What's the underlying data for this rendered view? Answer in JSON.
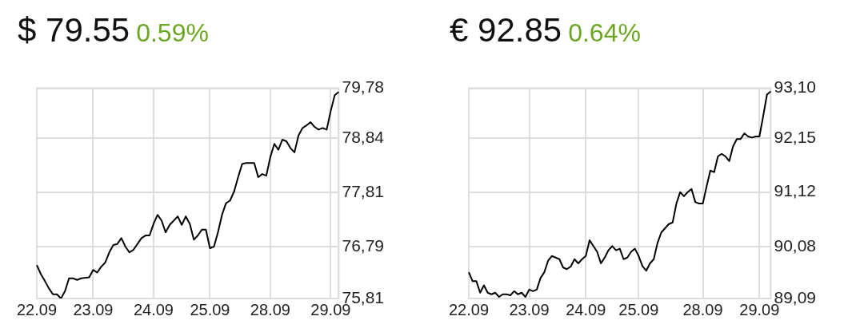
{
  "chart_data": [
    {
      "type": "line",
      "title": "$ 79.55",
      "subtitle": "0.59%",
      "categories": [
        "22.09",
        null,
        null,
        null,
        null,
        null,
        null,
        null,
        null,
        null,
        null,
        null,
        null,
        null,
        "23.09",
        null,
        null,
        null,
        null,
        null,
        null,
        null,
        null,
        null,
        null,
        null,
        null,
        null,
        null,
        "24.09",
        null,
        null,
        null,
        null,
        null,
        null,
        null,
        null,
        null,
        null,
        null,
        null,
        null,
        "25.09",
        null,
        null,
        null,
        null,
        null,
        null,
        null,
        null,
        null,
        null,
        null,
        null,
        null,
        null,
        "28.09",
        null,
        null,
        null,
        null,
        null,
        null,
        null,
        null,
        null,
        null,
        null,
        null,
        null,
        null,
        "29.09",
        null,
        null
      ],
      "ylim": [
        75.81,
        79.78
      ],
      "yticks": [
        {
          "value": 75.81,
          "label": "75,81"
        },
        {
          "value": 76.79,
          "label": "76,79"
        },
        {
          "value": 77.81,
          "label": "77,81"
        },
        {
          "value": 78.84,
          "label": "78,84"
        },
        {
          "value": 79.78,
          "label": "79,78"
        }
      ],
      "grid": true,
      "legend": false,
      "marker": "none",
      "line_style": "solid",
      "series": [
        {
          "color": "#000000",
          "values": [
            76.44,
            76.27,
            76.14,
            76.0,
            75.89,
            75.89,
            75.81,
            75.95,
            76.19,
            76.19,
            76.16,
            76.19,
            76.2,
            76.21,
            76.35,
            76.3,
            76.41,
            76.49,
            76.68,
            76.82,
            76.84,
            76.95,
            76.79,
            76.68,
            76.73,
            76.84,
            76.95,
            77.0,
            77.0,
            77.22,
            77.39,
            77.28,
            77.06,
            77.2,
            77.28,
            77.36,
            77.2,
            77.36,
            77.22,
            76.92,
            77.0,
            77.11,
            77.11,
            76.76,
            76.79,
            77.06,
            77.39,
            77.61,
            77.66,
            77.83,
            78.1,
            78.35,
            78.37,
            78.37,
            78.37,
            78.1,
            78.16,
            78.13,
            78.48,
            78.73,
            78.62,
            78.81,
            78.78,
            78.65,
            78.57,
            78.89,
            79.03,
            79.08,
            79.14,
            79.05,
            79.0,
            79.03,
            79.0,
            79.35,
            79.65,
            79.71
          ]
        }
      ]
    },
    {
      "type": "line",
      "title": "€ 92.85",
      "subtitle": "0.64%",
      "categories": [
        "22.09",
        null,
        null,
        null,
        null,
        null,
        null,
        null,
        null,
        null,
        null,
        null,
        null,
        null,
        null,
        null,
        "23.09",
        null,
        null,
        null,
        null,
        null,
        null,
        null,
        null,
        null,
        null,
        null,
        null,
        null,
        null,
        "24.09",
        null,
        null,
        null,
        null,
        null,
        null,
        null,
        null,
        null,
        null,
        null,
        null,
        null,
        "25.09",
        null,
        null,
        null,
        null,
        null,
        null,
        null,
        null,
        null,
        null,
        null,
        null,
        null,
        null,
        null,
        null,
        "28.09",
        null,
        null,
        null,
        null,
        null,
        null,
        null,
        null,
        null,
        null,
        null,
        null,
        null,
        null,
        "29.09",
        null,
        null,
        null
      ],
      "ylim": [
        89.09,
        93.1
      ],
      "yticks": [
        {
          "value": 89.09,
          "label": "89,09"
        },
        {
          "value": 90.08,
          "label": "90,08"
        },
        {
          "value": 91.12,
          "label": "91,12"
        },
        {
          "value": 92.15,
          "label": "92,15"
        },
        {
          "value": 93.1,
          "label": "93,10"
        }
      ],
      "grid": true,
      "legend": false,
      "marker": "none",
      "line_style": "solid",
      "series": [
        {
          "color": "#000000",
          "values": [
            89.59,
            89.42,
            89.42,
            89.2,
            89.34,
            89.2,
            89.17,
            89.2,
            89.12,
            89.17,
            89.17,
            89.15,
            89.23,
            89.17,
            89.2,
            89.12,
            89.26,
            89.23,
            89.26,
            89.48,
            89.59,
            89.81,
            89.9,
            89.87,
            89.84,
            89.68,
            89.65,
            89.7,
            89.84,
            89.76,
            89.84,
            89.9,
            90.2,
            90.09,
            89.98,
            89.76,
            89.87,
            90.01,
            90.09,
            90.01,
            90.04,
            89.84,
            89.87,
            89.98,
            90.04,
            89.9,
            89.71,
            89.62,
            89.76,
            89.84,
            90.15,
            90.35,
            90.43,
            90.51,
            90.54,
            90.9,
            91.12,
            91.04,
            91.12,
            91.18,
            90.93,
            90.9,
            90.9,
            91.23,
            91.53,
            91.5,
            91.8,
            91.85,
            91.8,
            91.71,
            91.99,
            92.13,
            92.13,
            92.24,
            92.18,
            92.16,
            92.18,
            92.18,
            92.57,
            92.98,
            93.04
          ]
        }
      ]
    }
  ]
}
